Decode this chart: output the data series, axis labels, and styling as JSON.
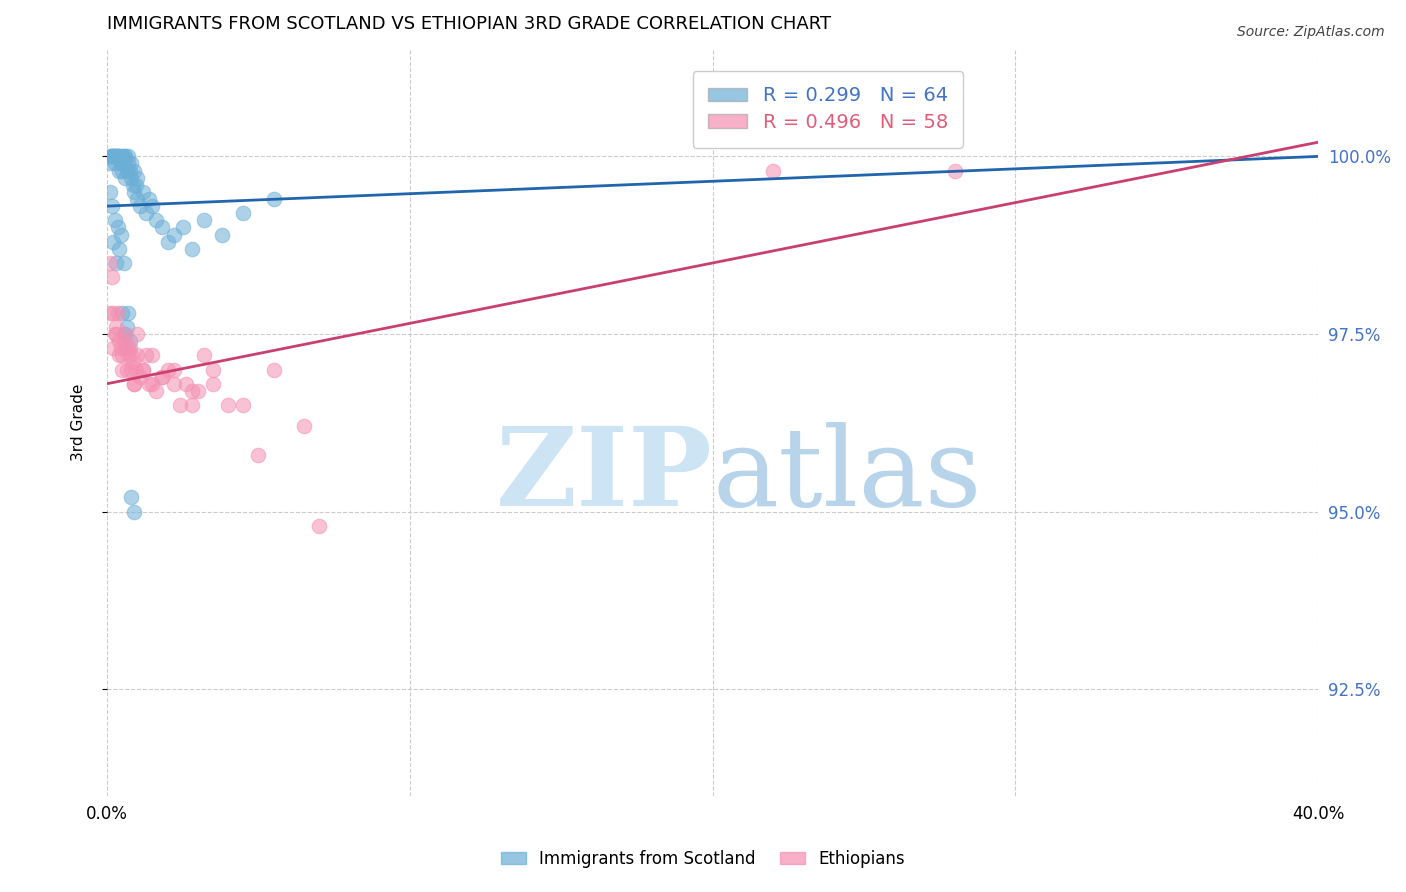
{
  "title": "IMMIGRANTS FROM SCOTLAND VS ETHIOPIAN 3RD GRADE CORRELATION CHART",
  "source": "Source: ZipAtlas.com",
  "ylabel": "3rd Grade",
  "xmin": 0.0,
  "xmax": 40.0,
  "ymin": 91.0,
  "ymax": 101.5,
  "yticks": [
    92.5,
    95.0,
    97.5,
    100.0
  ],
  "xticks": [
    0,
    10,
    20,
    30,
    40
  ],
  "legend_blue_r": "R = 0.299",
  "legend_blue_n": "N = 64",
  "legend_pink_r": "R = 0.496",
  "legend_pink_n": "N = 58",
  "blue_color": "#6baed6",
  "pink_color": "#f48fb1",
  "trendline_blue_color": "#2166ac",
  "trendline_pink_color": "#c94070",
  "watermark_zip_color": "#cde4f5",
  "watermark_atlas_color": "#b8d4ea",
  "blue_scatter_x": [
    0.1,
    0.1,
    0.15,
    0.15,
    0.2,
    0.2,
    0.25,
    0.25,
    0.3,
    0.3,
    0.35,
    0.35,
    0.4,
    0.4,
    0.45,
    0.5,
    0.5,
    0.55,
    0.55,
    0.6,
    0.6,
    0.65,
    0.7,
    0.7,
    0.75,
    0.8,
    0.8,
    0.85,
    0.9,
    0.9,
    0.95,
    1.0,
    1.0,
    1.1,
    1.2,
    1.3,
    1.4,
    1.5,
    1.6,
    1.8,
    2.0,
    2.2,
    2.5,
    2.8,
    3.2,
    3.8,
    4.5,
    5.5,
    0.1,
    0.15,
    0.2,
    0.25,
    0.3,
    0.35,
    0.4,
    0.45,
    0.5,
    0.55,
    0.6,
    0.65,
    0.7,
    0.75,
    0.8,
    0.9
  ],
  "blue_scatter_y": [
    99.9,
    100.0,
    100.0,
    100.0,
    100.0,
    100.0,
    100.0,
    99.9,
    100.0,
    100.0,
    100.0,
    100.0,
    100.0,
    99.8,
    99.9,
    100.0,
    99.8,
    99.9,
    100.0,
    100.0,
    99.7,
    99.8,
    99.9,
    100.0,
    99.8,
    99.7,
    99.9,
    99.6,
    99.8,
    99.5,
    99.6,
    99.4,
    99.7,
    99.3,
    99.5,
    99.2,
    99.4,
    99.3,
    99.1,
    99.0,
    98.8,
    98.9,
    99.0,
    98.7,
    99.1,
    98.9,
    99.2,
    99.4,
    99.5,
    99.3,
    98.8,
    99.1,
    98.5,
    99.0,
    98.7,
    98.9,
    97.8,
    98.5,
    97.5,
    97.6,
    97.8,
    97.4,
    95.2,
    95.0
  ],
  "pink_scatter_x": [
    0.1,
    0.1,
    0.15,
    0.2,
    0.25,
    0.3,
    0.35,
    0.4,
    0.45,
    0.5,
    0.55,
    0.6,
    0.65,
    0.7,
    0.75,
    0.8,
    0.85,
    0.9,
    0.95,
    1.0,
    1.1,
    1.2,
    1.3,
    1.4,
    1.5,
    1.6,
    1.8,
    2.0,
    2.2,
    2.4,
    2.6,
    2.8,
    3.0,
    3.2,
    3.5,
    4.0,
    4.5,
    5.5,
    6.5,
    0.2,
    0.3,
    0.4,
    0.5,
    0.6,
    0.7,
    0.8,
    0.9,
    1.0,
    1.2,
    1.5,
    1.8,
    2.2,
    2.8,
    3.5,
    5.0,
    7.0,
    22.0,
    28.0
  ],
  "pink_scatter_y": [
    98.5,
    97.8,
    98.3,
    97.8,
    97.5,
    97.6,
    97.8,
    97.4,
    97.3,
    97.2,
    97.5,
    97.3,
    97.0,
    97.2,
    97.3,
    97.0,
    97.1,
    96.8,
    97.0,
    97.2,
    96.9,
    97.0,
    97.2,
    96.8,
    96.8,
    96.7,
    96.9,
    97.0,
    96.8,
    96.5,
    96.8,
    96.5,
    96.7,
    97.2,
    96.8,
    96.5,
    96.5,
    97.0,
    96.2,
    97.3,
    97.5,
    97.2,
    97.0,
    97.4,
    97.3,
    97.2,
    96.8,
    97.5,
    97.0,
    97.2,
    96.9,
    97.0,
    96.7,
    97.0,
    95.8,
    94.8,
    99.8,
    99.8
  ],
  "blue_trend_x": [
    0.0,
    40.0
  ],
  "blue_trend_y": [
    99.3,
    100.0
  ],
  "pink_trend_x": [
    0.0,
    40.0
  ],
  "pink_trend_y": [
    96.8,
    100.2
  ]
}
